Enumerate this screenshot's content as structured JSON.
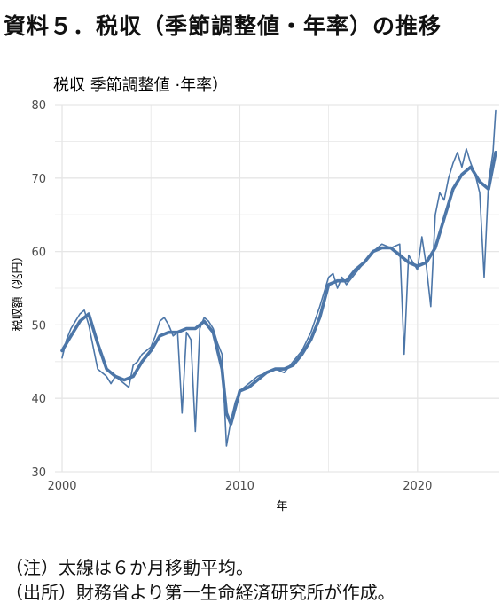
{
  "page_title": "資料５．税収（季節調整値・年率）の推移",
  "notes": {
    "line1": "（注）太線は６か月移動平均。",
    "line2": "（出所）財務省より第一生命経済研究所が作成。"
  },
  "colors": {
    "series": "#4c76a8",
    "grid": "#e6e6e6",
    "text": "#4d4d4d"
  },
  "chart_data": {
    "type": "line",
    "title": "税収  季節調整値 ·年率）",
    "xlabel": "年",
    "ylabel": "税収額（兆円）",
    "xlim": [
      1999.6,
      2024.6
    ],
    "ylim": [
      30,
      80
    ],
    "xticks": [
      2000,
      2010,
      2020
    ],
    "yticks": [
      30,
      40,
      50,
      60,
      70,
      80
    ],
    "grid": true,
    "legend": "none",
    "series": [
      {
        "style": "thin",
        "x": [
          2000.0,
          2000.25,
          2000.5,
          2000.75,
          2001.0,
          2001.25,
          2001.5,
          2001.75,
          2002.0,
          2002.25,
          2002.5,
          2002.75,
          2003.0,
          2003.25,
          2003.5,
          2003.75,
          2004.0,
          2004.25,
          2004.5,
          2004.75,
          2005.0,
          2005.25,
          2005.5,
          2005.75,
          2006.0,
          2006.25,
          2006.5,
          2006.75,
          2007.0,
          2007.25,
          2007.5,
          2007.75,
          2008.0,
          2008.25,
          2008.5,
          2008.75,
          2009.0,
          2009.25,
          2009.5,
          2009.75,
          2010.0,
          2010.25,
          2010.5,
          2010.75,
          2011.0,
          2011.5,
          2012.0,
          2012.5,
          2013.0,
          2013.5,
          2014.0,
          2014.5,
          2015.0,
          2015.25,
          2015.5,
          2015.75,
          2016.0,
          2016.5,
          2017.0,
          2017.5,
          2018.0,
          2018.5,
          2019.0,
          2019.25,
          2019.5,
          2019.75,
          2020.0,
          2020.25,
          2020.5,
          2020.75,
          2021.0,
          2021.25,
          2021.5,
          2021.75,
          2022.0,
          2022.25,
          2022.5,
          2022.75,
          2023.0,
          2023.25,
          2023.5,
          2023.75,
          2024.0,
          2024.25,
          2024.4
        ],
        "values": [
          45.5,
          48.0,
          49.5,
          50.5,
          51.5,
          52.0,
          50.0,
          47.0,
          44.0,
          43.5,
          43.0,
          42.0,
          43.0,
          42.5,
          42.0,
          41.5,
          44.5,
          45.0,
          46.0,
          46.5,
          47.0,
          48.5,
          50.5,
          51.0,
          50.0,
          48.5,
          49.0,
          38.0,
          49.0,
          48.0,
          35.5,
          49.5,
          51.0,
          50.5,
          49.5,
          47.5,
          46.0,
          33.5,
          37.0,
          39.5,
          41.0,
          41.5,
          42.0,
          42.5,
          43.0,
          43.5,
          44.0,
          43.5,
          45.0,
          46.5,
          49.0,
          52.5,
          56.5,
          57.0,
          55.0,
          56.5,
          55.5,
          57.0,
          58.5,
          60.0,
          61.0,
          60.5,
          61.0,
          46.0,
          59.5,
          58.5,
          57.5,
          62.0,
          58.0,
          52.5,
          65.0,
          68.0,
          67.0,
          70.0,
          72.0,
          73.5,
          71.5,
          74.0,
          72.0,
          70.5,
          68.0,
          56.5,
          69.5,
          73.5,
          79.2
        ]
      },
      {
        "style": "thick",
        "x": [
          2000.0,
          2000.5,
          2001.0,
          2001.5,
          2002.0,
          2002.5,
          2003.0,
          2003.5,
          2004.0,
          2004.5,
          2005.0,
          2005.5,
          2006.0,
          2006.5,
          2007.0,
          2007.5,
          2008.0,
          2008.5,
          2009.0,
          2009.25,
          2009.5,
          2010.0,
          2010.5,
          2011.0,
          2011.5,
          2012.0,
          2012.5,
          2013.0,
          2013.5,
          2014.0,
          2014.5,
          2015.0,
          2015.5,
          2016.0,
          2016.5,
          2017.0,
          2017.5,
          2018.0,
          2018.5,
          2019.0,
          2019.5,
          2020.0,
          2020.5,
          2021.0,
          2021.5,
          2022.0,
          2022.5,
          2023.0,
          2023.5,
          2024.0,
          2024.4
        ],
        "values": [
          46.5,
          48.5,
          50.5,
          51.5,
          47.5,
          44.0,
          43.0,
          42.5,
          43.0,
          45.0,
          46.5,
          48.5,
          49.0,
          49.0,
          49.5,
          49.5,
          50.5,
          49.0,
          44.0,
          38.0,
          36.5,
          41.0,
          41.5,
          42.5,
          43.5,
          44.0,
          44.0,
          44.5,
          46.0,
          48.0,
          51.0,
          55.5,
          56.0,
          56.0,
          57.5,
          58.5,
          60.0,
          60.5,
          60.5,
          59.5,
          58.5,
          58.0,
          58.5,
          60.5,
          64.5,
          68.5,
          70.5,
          71.5,
          69.5,
          68.5,
          73.5
        ]
      }
    ]
  }
}
